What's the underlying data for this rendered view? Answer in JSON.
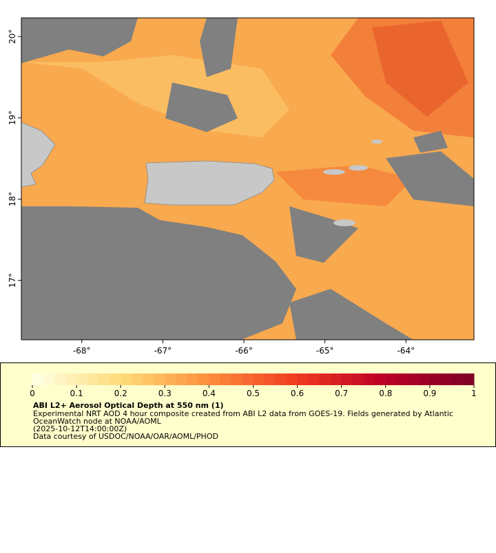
{
  "map": {
    "xlim": [
      -68.746,
      -63.161
    ],
    "ylim": [
      16.27,
      20.229
    ],
    "xticks": [
      {
        "value": -68,
        "label": "-68°"
      },
      {
        "value": -67,
        "label": "-67°"
      },
      {
        "value": -66,
        "label": "-66°"
      },
      {
        "value": -65,
        "label": "-65°"
      },
      {
        "value": -64,
        "label": "-64°"
      }
    ],
    "yticks": [
      {
        "value": 20,
        "label": "20°"
      },
      {
        "value": 19,
        "label": "19°"
      },
      {
        "value": 18,
        "label": "18°"
      },
      {
        "value": 17,
        "label": "17°"
      }
    ]
  },
  "legend": {
    "lim": [
      0,
      1
    ],
    "ticks": [
      0,
      0.1,
      0.2,
      0.3,
      0.4,
      0.5,
      0.6,
      0.7,
      0.8,
      0.9,
      1
    ],
    "title": "ABI L2+ Aerosol Optical Depth at 550 nm (1)",
    "lines": [
      "Experimental NRT AOD 4 hour composite created from ABI L2 data from GOES-19. Fields generated by Atlantic",
      "OceanWatch node at NOAA/AOML",
      "(2025-10-12T14:00:00Z)",
      "Data courtesy of USDOC/NOAA/OAR/AOML/PHOD"
    ]
  }
}
